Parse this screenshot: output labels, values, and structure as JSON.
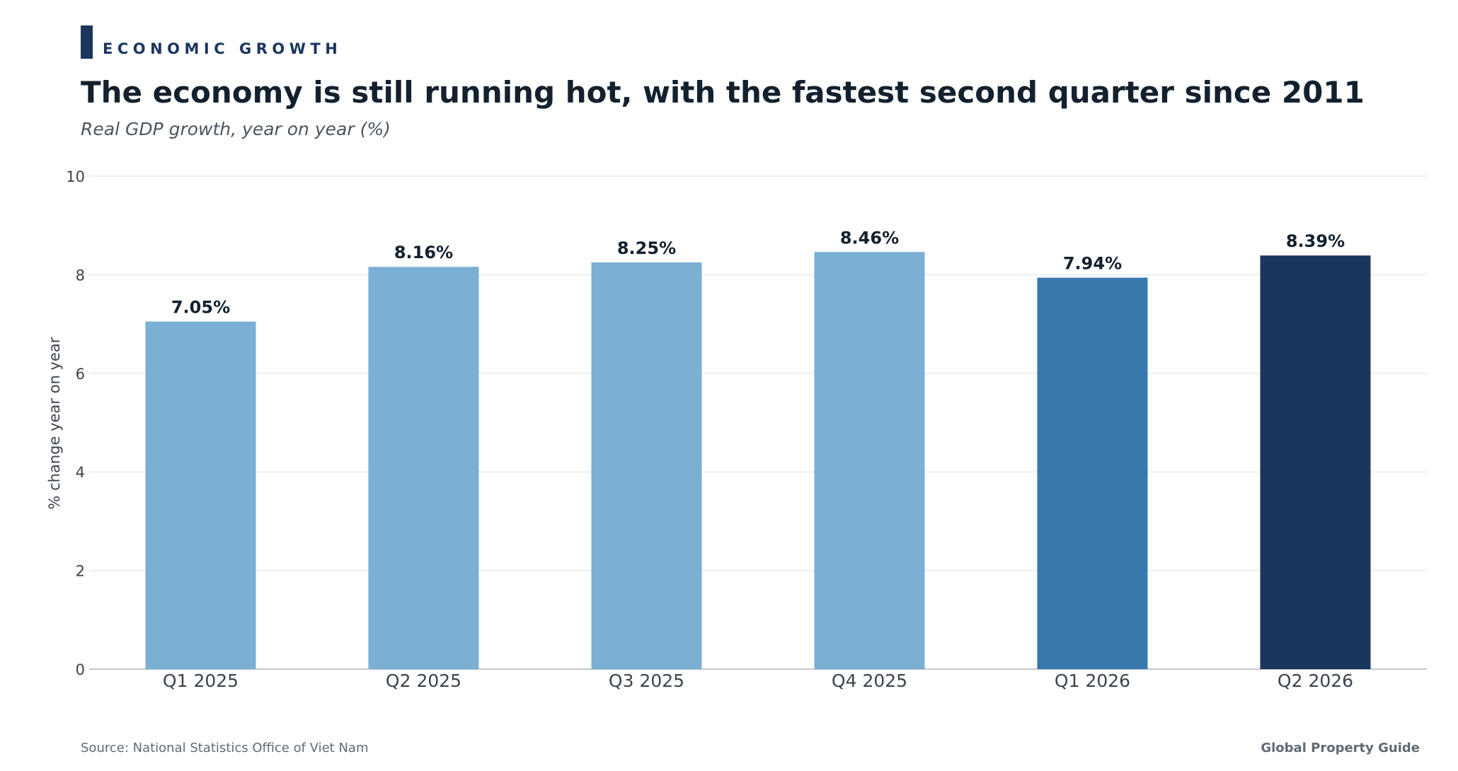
{
  "kicker": "ECONOMIC GROWTH",
  "title": "The economy is still running hot, with the fastest second quarter since 2011",
  "subtitle": "Real GDP growth, year on year (%)",
  "footer": {
    "source": "Source: National Statistics Office of Viet Nam",
    "brand": "Global Property Guide"
  },
  "colors": {
    "accent": "#1b365d",
    "bar_light": "#7bafd4",
    "bar_mid": "#3778ad",
    "bar_dark": "#1b365d",
    "text_dark": "#13212f",
    "grid": "#e6e9ec"
  },
  "chart_data": {
    "type": "bar",
    "categories": [
      "Q1 2025",
      "Q2 2025",
      "Q3 2025",
      "Q4 2025",
      "Q1 2026",
      "Q2 2026"
    ],
    "values": [
      7.05,
      8.16,
      8.25,
      8.46,
      7.94,
      8.39
    ],
    "data_labels": [
      "7.05%",
      "8.16%",
      "8.25%",
      "8.46%",
      "7.94%",
      "8.39%"
    ],
    "bar_colors": [
      "#7bafd4",
      "#7bafd4",
      "#7bafd4",
      "#7bafd4",
      "#3778ad",
      "#1b365d"
    ],
    "ylabel": "% change year on year",
    "ylim": [
      0,
      10
    ],
    "yticks": [
      0,
      2,
      4,
      6,
      8,
      10
    ],
    "grid": true
  }
}
